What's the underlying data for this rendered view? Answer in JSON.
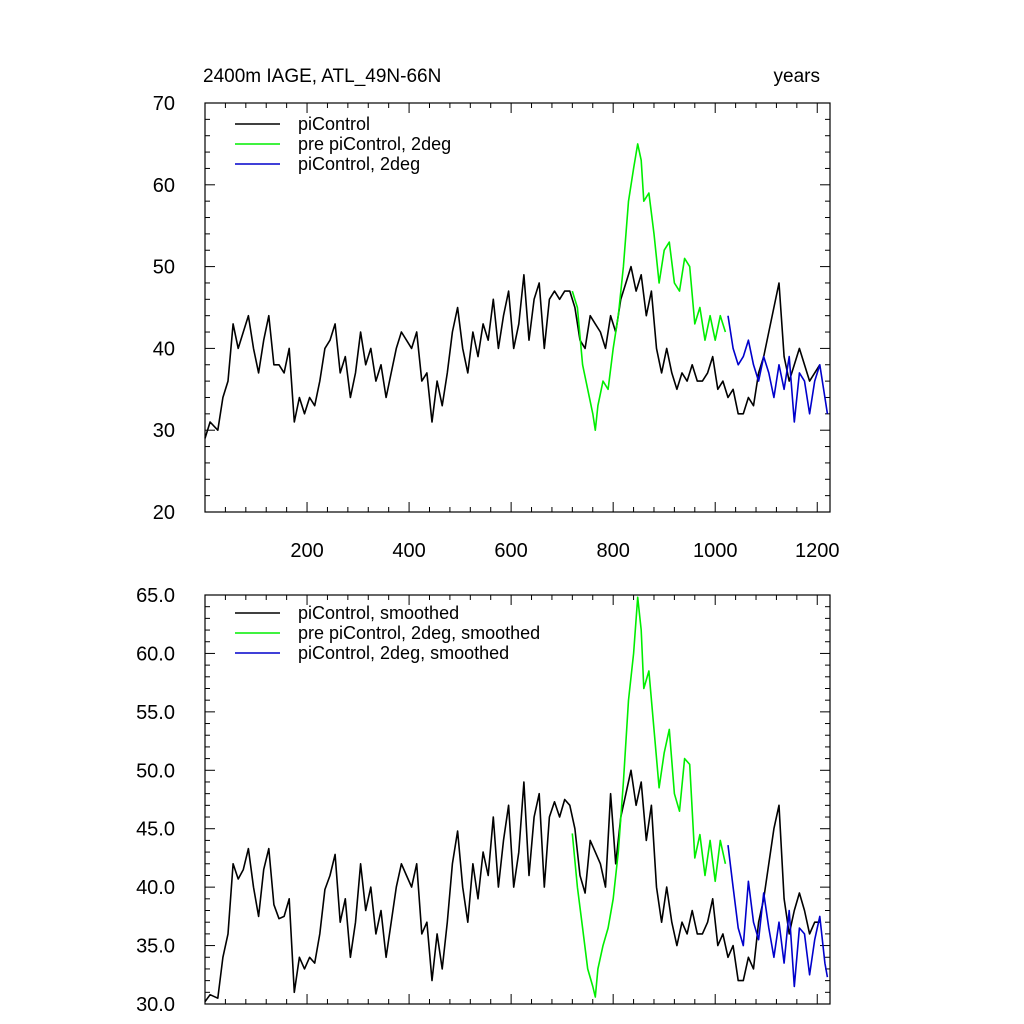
{
  "chart_data": [
    {
      "type": "line",
      "title_left": "2400m IAGE, ATL_49N-66N",
      "title_right": "years",
      "xlabel": "",
      "ylabel": "",
      "xlim": [
        0,
        1225
      ],
      "ylim": [
        20,
        70
      ],
      "xticks": [
        200,
        400,
        600,
        800,
        1000,
        1200
      ],
      "xtick_labels": [
        "200",
        "400",
        "600",
        "800",
        "1000",
        "1200"
      ],
      "yticks": [
        20,
        30,
        40,
        50,
        60,
        70
      ],
      "ytick_labels": [
        "20",
        "30",
        "40",
        "50",
        "60",
        "70"
      ],
      "legend_position": "top-left",
      "series": [
        {
          "name": "piControl",
          "color": "#000000",
          "x": [
            0,
            10,
            25,
            35,
            45,
            55,
            65,
            75,
            85,
            95,
            105,
            115,
            125,
            135,
            145,
            155,
            165,
            175,
            185,
            195,
            205,
            215,
            225,
            235,
            245,
            255,
            265,
            275,
            285,
            295,
            305,
            315,
            325,
            335,
            345,
            355,
            365,
            375,
            385,
            395,
            405,
            415,
            425,
            435,
            445,
            455,
            465,
            475,
            485,
            495,
            505,
            515,
            525,
            535,
            545,
            555,
            565,
            575,
            585,
            595,
            605,
            615,
            625,
            635,
            645,
            655,
            665,
            675,
            685,
            695,
            705,
            715,
            725,
            735,
            745,
            755,
            765,
            775,
            785,
            795,
            805,
            815,
            825,
            835,
            845,
            855,
            865,
            875,
            885,
            895,
            905,
            915,
            925,
            935,
            945,
            955,
            965,
            975,
            985,
            995,
            1005,
            1015,
            1025,
            1035,
            1045,
            1055,
            1065,
            1075,
            1085,
            1095,
            1105,
            1115,
            1125,
            1135,
            1145,
            1155,
            1165,
            1175,
            1185,
            1195,
            1205
          ],
          "values": [
            29,
            31,
            30,
            34,
            36,
            43,
            40,
            42,
            44,
            40,
            37,
            41,
            44,
            38,
            38,
            37,
            40,
            31,
            34,
            32,
            34,
            33,
            36,
            40,
            41,
            43,
            37,
            39,
            34,
            37,
            42,
            38,
            40,
            36,
            38,
            34,
            37,
            40,
            42,
            41,
            40,
            42,
            36,
            37,
            31,
            36,
            33,
            37,
            42,
            45,
            40,
            37,
            42,
            39,
            43,
            41,
            46,
            40,
            44,
            47,
            40,
            43,
            49,
            41,
            46,
            48,
            40,
            46,
            47,
            46,
            47,
            47,
            45,
            41,
            40,
            44,
            43,
            42,
            40,
            44,
            42,
            46,
            48,
            50,
            47,
            49,
            44,
            47,
            40,
            37,
            40,
            37,
            35,
            37,
            36,
            38,
            36,
            36,
            37,
            39,
            35,
            36,
            34,
            35,
            32,
            32,
            34,
            33,
            37,
            39,
            42,
            45,
            48,
            39,
            36,
            38,
            40,
            38,
            36,
            37,
            38
          ]
        },
        {
          "name": "pre piControl, 2deg",
          "color": "#00ee00",
          "x": [
            720,
            730,
            740,
            750,
            760,
            765,
            770,
            780,
            790,
            800,
            810,
            820,
            830,
            840,
            848,
            855,
            860,
            870,
            880,
            890,
            900,
            910,
            920,
            930,
            940,
            950,
            960,
            970,
            980,
            990,
            1000,
            1010,
            1020
          ],
          "values": [
            47,
            45,
            38,
            35,
            32,
            30,
            33,
            36,
            35,
            40,
            44,
            50,
            58,
            62,
            65,
            63,
            58,
            59,
            54,
            48,
            52,
            53,
            48,
            47,
            51,
            50,
            43,
            45,
            41,
            44,
            41,
            44,
            42
          ]
        },
        {
          "name": "piControl, 2deg",
          "color": "#0000cc",
          "x": [
            1025,
            1035,
            1045,
            1055,
            1065,
            1075,
            1085,
            1095,
            1105,
            1115,
            1125,
            1135,
            1145,
            1155,
            1165,
            1175,
            1185,
            1195,
            1205,
            1215,
            1220
          ],
          "values": [
            44,
            40,
            38,
            39,
            41,
            38,
            36,
            39,
            37,
            34,
            38,
            35,
            39,
            31,
            37,
            36,
            32,
            36,
            38,
            34,
            32
          ]
        }
      ]
    },
    {
      "type": "line",
      "title_left": "",
      "title_right": "",
      "xlabel": "",
      "ylabel": "",
      "xlim": [
        0,
        1225
      ],
      "ylim": [
        30,
        65
      ],
      "xticks": [
        200,
        400,
        600,
        800,
        1000,
        1200
      ],
      "xtick_labels": [],
      "yticks": [
        30,
        35,
        40,
        45,
        50,
        55,
        60,
        65
      ],
      "ytick_labels": [
        "30.0",
        "35.0",
        "40.0",
        "45.0",
        "50.0",
        "55.0",
        "60.0",
        "65.0"
      ],
      "legend_position": "top-left",
      "series": [
        {
          "name": "piControl, smoothed",
          "color": "#000000",
          "x": [
            0,
            10,
            25,
            35,
            45,
            55,
            65,
            75,
            85,
            95,
            105,
            115,
            125,
            135,
            145,
            155,
            165,
            175,
            185,
            195,
            205,
            215,
            225,
            235,
            245,
            255,
            265,
            275,
            285,
            295,
            305,
            315,
            325,
            335,
            345,
            355,
            365,
            375,
            385,
            395,
            405,
            415,
            425,
            435,
            445,
            455,
            465,
            475,
            485,
            495,
            505,
            515,
            525,
            535,
            545,
            555,
            565,
            575,
            585,
            595,
            605,
            615,
            625,
            635,
            645,
            655,
            665,
            675,
            685,
            695,
            705,
            715,
            725,
            735,
            745,
            755,
            765,
            775,
            785,
            795,
            805,
            815,
            825,
            835,
            845,
            855,
            865,
            875,
            885,
            895,
            905,
            915,
            925,
            935,
            945,
            955,
            965,
            975,
            985,
            995,
            1005,
            1015,
            1025,
            1035,
            1045,
            1055,
            1065,
            1075,
            1085,
            1095,
            1105,
            1115,
            1125,
            1135,
            1145,
            1155,
            1165,
            1175,
            1185,
            1195,
            1205
          ],
          "values": [
            30.2,
            30.8,
            30.5,
            34,
            36,
            42,
            40.7,
            41.5,
            43.3,
            40,
            37.5,
            41.5,
            43.3,
            38.5,
            37.3,
            37.5,
            39,
            31,
            34,
            33,
            34,
            33.5,
            36,
            39.8,
            41,
            42.8,
            37,
            39,
            34,
            37,
            42,
            38,
            40,
            36,
            38,
            34,
            37,
            40,
            42,
            41,
            40,
            42,
            36,
            37,
            32,
            36,
            33,
            37,
            42,
            44.8,
            40,
            37,
            42,
            39,
            43,
            41,
            46,
            40,
            44,
            47,
            40,
            43,
            49,
            41,
            46,
            48,
            40,
            46,
            47.3,
            46,
            47.5,
            47,
            45,
            41,
            39.5,
            44,
            43,
            42,
            40,
            48,
            42,
            46,
            48,
            50,
            47,
            49,
            44,
            47,
            40,
            37,
            40,
            37,
            35,
            37,
            36,
            38,
            36,
            36,
            37,
            39,
            35,
            36,
            34,
            35,
            32,
            32,
            34,
            33,
            37,
            39,
            42,
            45,
            47,
            39,
            36,
            38,
            39.5,
            38,
            36,
            37,
            37
          ]
        },
        {
          "name": "pre piControl, 2deg, smoothed",
          "color": "#00ee00",
          "x": [
            720,
            730,
            740,
            750,
            760,
            765,
            770,
            780,
            790,
            800,
            810,
            820,
            830,
            840,
            848,
            855,
            860,
            870,
            880,
            890,
            900,
            910,
            920,
            930,
            940,
            950,
            960,
            970,
            980,
            990,
            1000,
            1010,
            1020
          ],
          "values": [
            44.6,
            40,
            36.5,
            33,
            31.5,
            30.6,
            33,
            35,
            36.5,
            39,
            43,
            49,
            56,
            60,
            64.8,
            62,
            57,
            58.5,
            53.5,
            48.5,
            51.5,
            53.5,
            48,
            46.5,
            51,
            50.5,
            42.5,
            44.5,
            41,
            44,
            40.5,
            44,
            42
          ]
        },
        {
          "name": "piControl, 2deg, smoothed",
          "color": "#0000cc",
          "x": [
            1025,
            1035,
            1045,
            1055,
            1065,
            1075,
            1085,
            1095,
            1105,
            1115,
            1125,
            1135,
            1145,
            1155,
            1165,
            1175,
            1185,
            1195,
            1205,
            1215,
            1220
          ],
          "values": [
            43.6,
            40,
            36.5,
            35,
            40.5,
            37,
            35.5,
            39.5,
            36.5,
            34,
            37,
            33.5,
            38,
            31.5,
            36.5,
            36,
            32.5,
            35.5,
            37.5,
            33.5,
            32.3
          ]
        }
      ]
    }
  ]
}
